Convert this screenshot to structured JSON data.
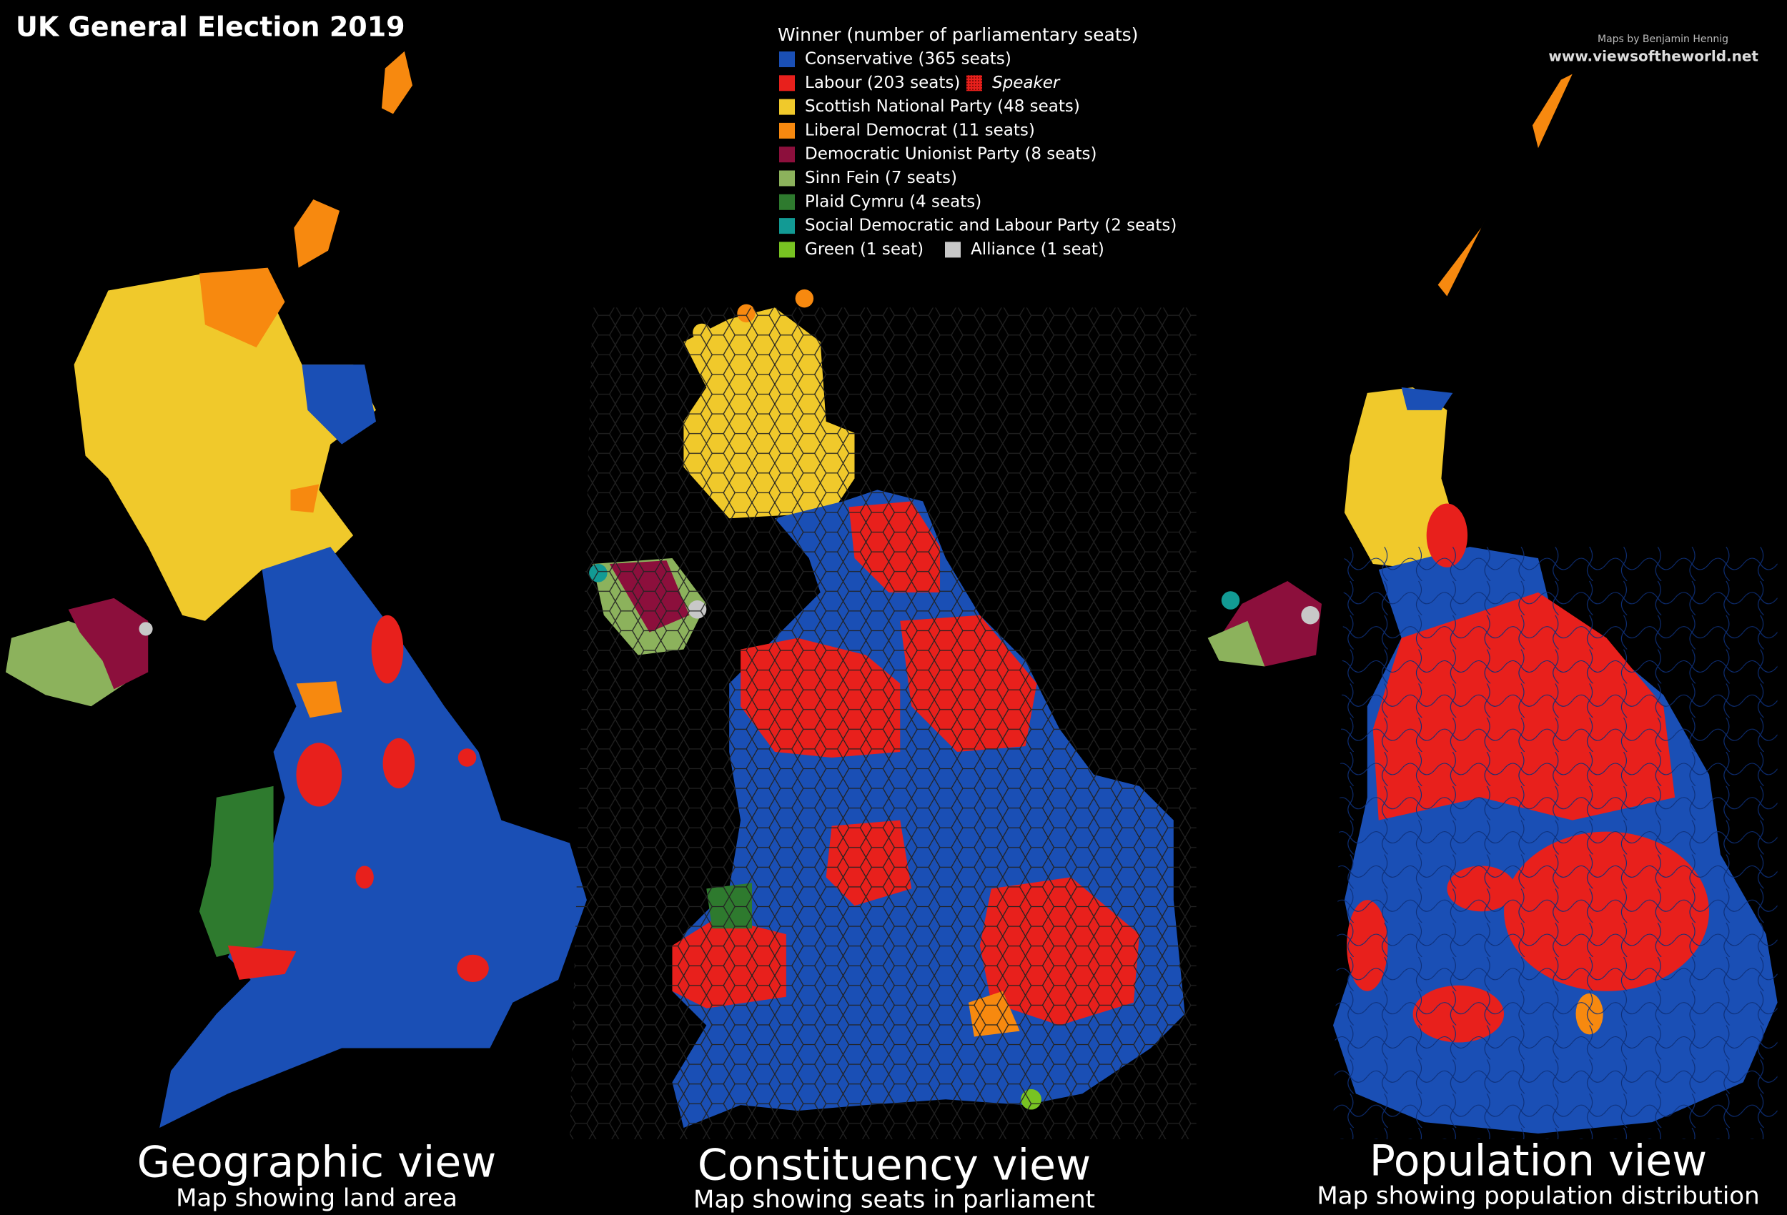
{
  "title": "UK General Election 2019",
  "credit": {
    "author": "Maps by Benjamin Hennig",
    "url": "www.viewsoftheworld.net"
  },
  "legend": {
    "title": "Winner (number of parliamentary seats)",
    "rows": [
      [
        {
          "label": "Conservative (365 seats)",
          "color": "#1a4fb5"
        }
      ],
      [
        {
          "label": "Labour (203 seats)",
          "color": "#e8201c"
        },
        {
          "label": "Speaker",
          "color": "#e8201c",
          "pattern": true
        }
      ],
      [
        {
          "label": "Scottish National Party (48 seats)",
          "color": "#f0c92b"
        }
      ],
      [
        {
          "label": "Liberal Democrat (11 seats)",
          "color": "#f7890f"
        }
      ],
      [
        {
          "label": "Democratic Unionist Party (8 seats)",
          "color": "#8c0f3c"
        }
      ],
      [
        {
          "label": "Sinn Fein (7 seats)",
          "color": "#8cb25c"
        }
      ],
      [
        {
          "label": "Plaid Cymru (4 seats)",
          "color": "#2e7a2e"
        }
      ],
      [
        {
          "label": "Social Democratic and Labour Party (2 seats)",
          "color": "#129a94"
        }
      ],
      [
        {
          "label": "Green (1 seat)",
          "color": "#78c322"
        },
        {
          "label": "Alliance (1 seat)",
          "color": "#c8c8c8"
        }
      ]
    ]
  },
  "views": [
    {
      "title": "Geographic view",
      "subtitle": "Map showing land area"
    },
    {
      "title": "Constituency view",
      "subtitle": "Map showing seats in parliament"
    },
    {
      "title": "Population view",
      "subtitle": "Map showing population distribution"
    }
  ]
}
